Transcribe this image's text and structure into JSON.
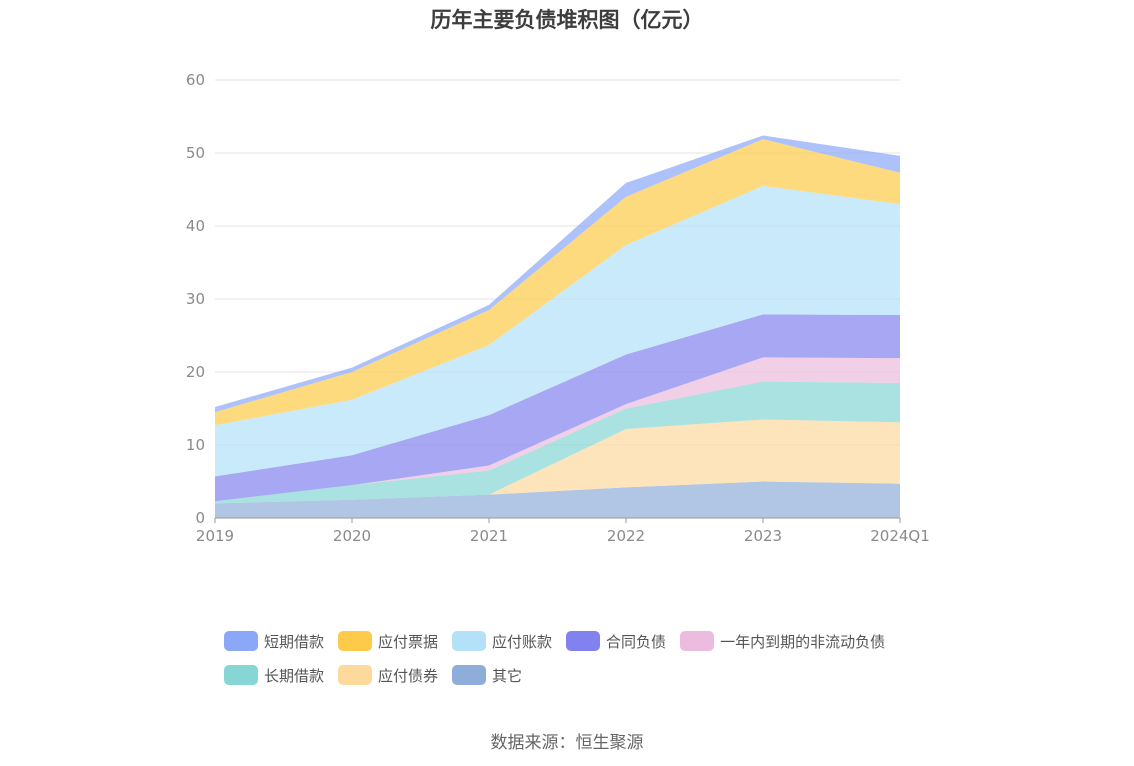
{
  "chart_data": {
    "type": "area",
    "stacked": true,
    "title": "历年主要负债堆积图（亿元）",
    "categories": [
      "2019",
      "2020",
      "2021",
      "2022",
      "2023",
      "2024Q1"
    ],
    "ylim": [
      0,
      60
    ],
    "yticks": [
      0,
      10,
      20,
      30,
      40,
      50,
      60
    ],
    "grid": true,
    "legend_position": "bottom",
    "series": [
      {
        "name": "其它",
        "color": "#8eaed9",
        "values": [
          2.0,
          2.5,
          3.2,
          4.2,
          5.0,
          4.7
        ]
      },
      {
        "name": "应付债券",
        "color": "#fdd99c",
        "values": [
          0.0,
          0.0,
          0.0,
          8.0,
          8.5,
          8.4
        ]
      },
      {
        "name": "长期借款",
        "color": "#86d6d6",
        "values": [
          0.3,
          2.0,
          3.3,
          2.8,
          5.2,
          5.4
        ]
      },
      {
        "name": "一年内到期的非流动负债",
        "color": "#ebbcdd",
        "values": [
          0.0,
          0.0,
          0.7,
          0.6,
          3.3,
          3.4
        ]
      },
      {
        "name": "合同负债",
        "color": "#8181f0",
        "values": [
          3.4,
          4.1,
          6.9,
          6.8,
          5.9,
          5.9
        ]
      },
      {
        "name": "应付账款",
        "color": "#b2e1f8",
        "values": [
          7.0,
          7.6,
          9.6,
          15.0,
          17.6,
          15.2
        ]
      },
      {
        "name": "应付票据",
        "color": "#fdca49",
        "values": [
          1.8,
          3.8,
          4.8,
          6.6,
          6.4,
          4.3
        ]
      },
      {
        "name": "短期借款",
        "color": "#8aa7f8",
        "values": [
          0.7,
          0.6,
          0.7,
          1.9,
          0.5,
          2.3
        ]
      }
    ],
    "legend_order": [
      "短期借款",
      "应付票据",
      "应付账款",
      "合同负债",
      "一年内到期的非流动负债",
      "长期借款",
      "应付债券",
      "其它"
    ]
  },
  "source_note": "数据来源：恒生聚源"
}
